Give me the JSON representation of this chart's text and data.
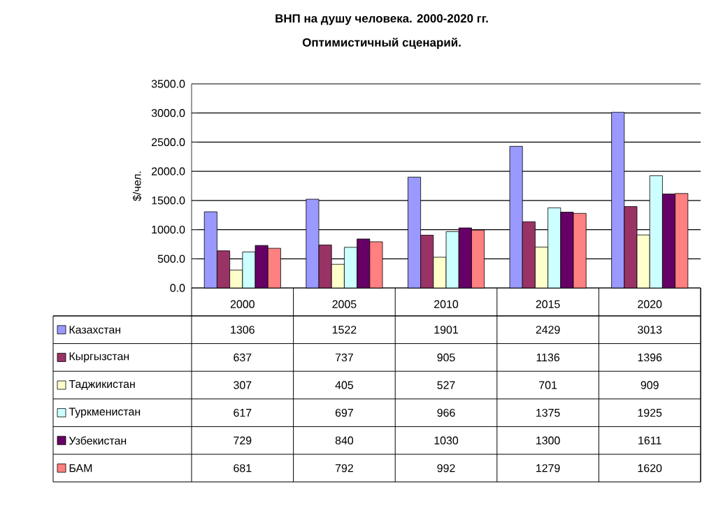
{
  "chart_data": {
    "type": "bar",
    "title": "ВНП на душу человека. 2000-2020 гг.",
    "subtitle": "Оптимистичный сценарий.",
    "ylabel": "$/чел.",
    "categories": [
      "2000",
      "2005",
      "2010",
      "2015",
      "2020"
    ],
    "series": [
      {
        "name": "Казахстан",
        "color": "#9999ff",
        "values": [
          1306,
          1522,
          1901,
          2429,
          3013
        ]
      },
      {
        "name": "Кыргызстан",
        "color": "#993366",
        "values": [
          637,
          737,
          905,
          1136,
          1396
        ]
      },
      {
        "name": "Таджикистан",
        "color": "#ffffcc",
        "values": [
          307,
          405,
          527,
          701,
          909
        ]
      },
      {
        "name": "Туркменистан",
        "color": "#ccffff",
        "values": [
          617,
          697,
          966,
          1375,
          1925
        ]
      },
      {
        "name": "Узбекистан",
        "color": "#660066",
        "values": [
          729,
          840,
          1030,
          1300,
          1611
        ]
      },
      {
        "name": "БАМ",
        "color": "#ff8080",
        "values": [
          681,
          792,
          992,
          1279,
          1620
        ]
      }
    ],
    "ylim": [
      0,
      3500
    ],
    "yticks": [
      {
        "value": 0,
        "label": "0.0"
      },
      {
        "value": 500,
        "label": "500.0"
      },
      {
        "value": 1000,
        "label": "1000.0"
      },
      {
        "value": 1500,
        "label": "1500.0"
      },
      {
        "value": 2000,
        "label": "2000.0"
      },
      {
        "value": 2500,
        "label": "2500.0"
      },
      {
        "value": 3000,
        "label": "3000.0"
      },
      {
        "value": 3500,
        "label": "3500.0"
      }
    ],
    "grid": "y",
    "legend": "bottom left",
    "data_labels": true
  }
}
